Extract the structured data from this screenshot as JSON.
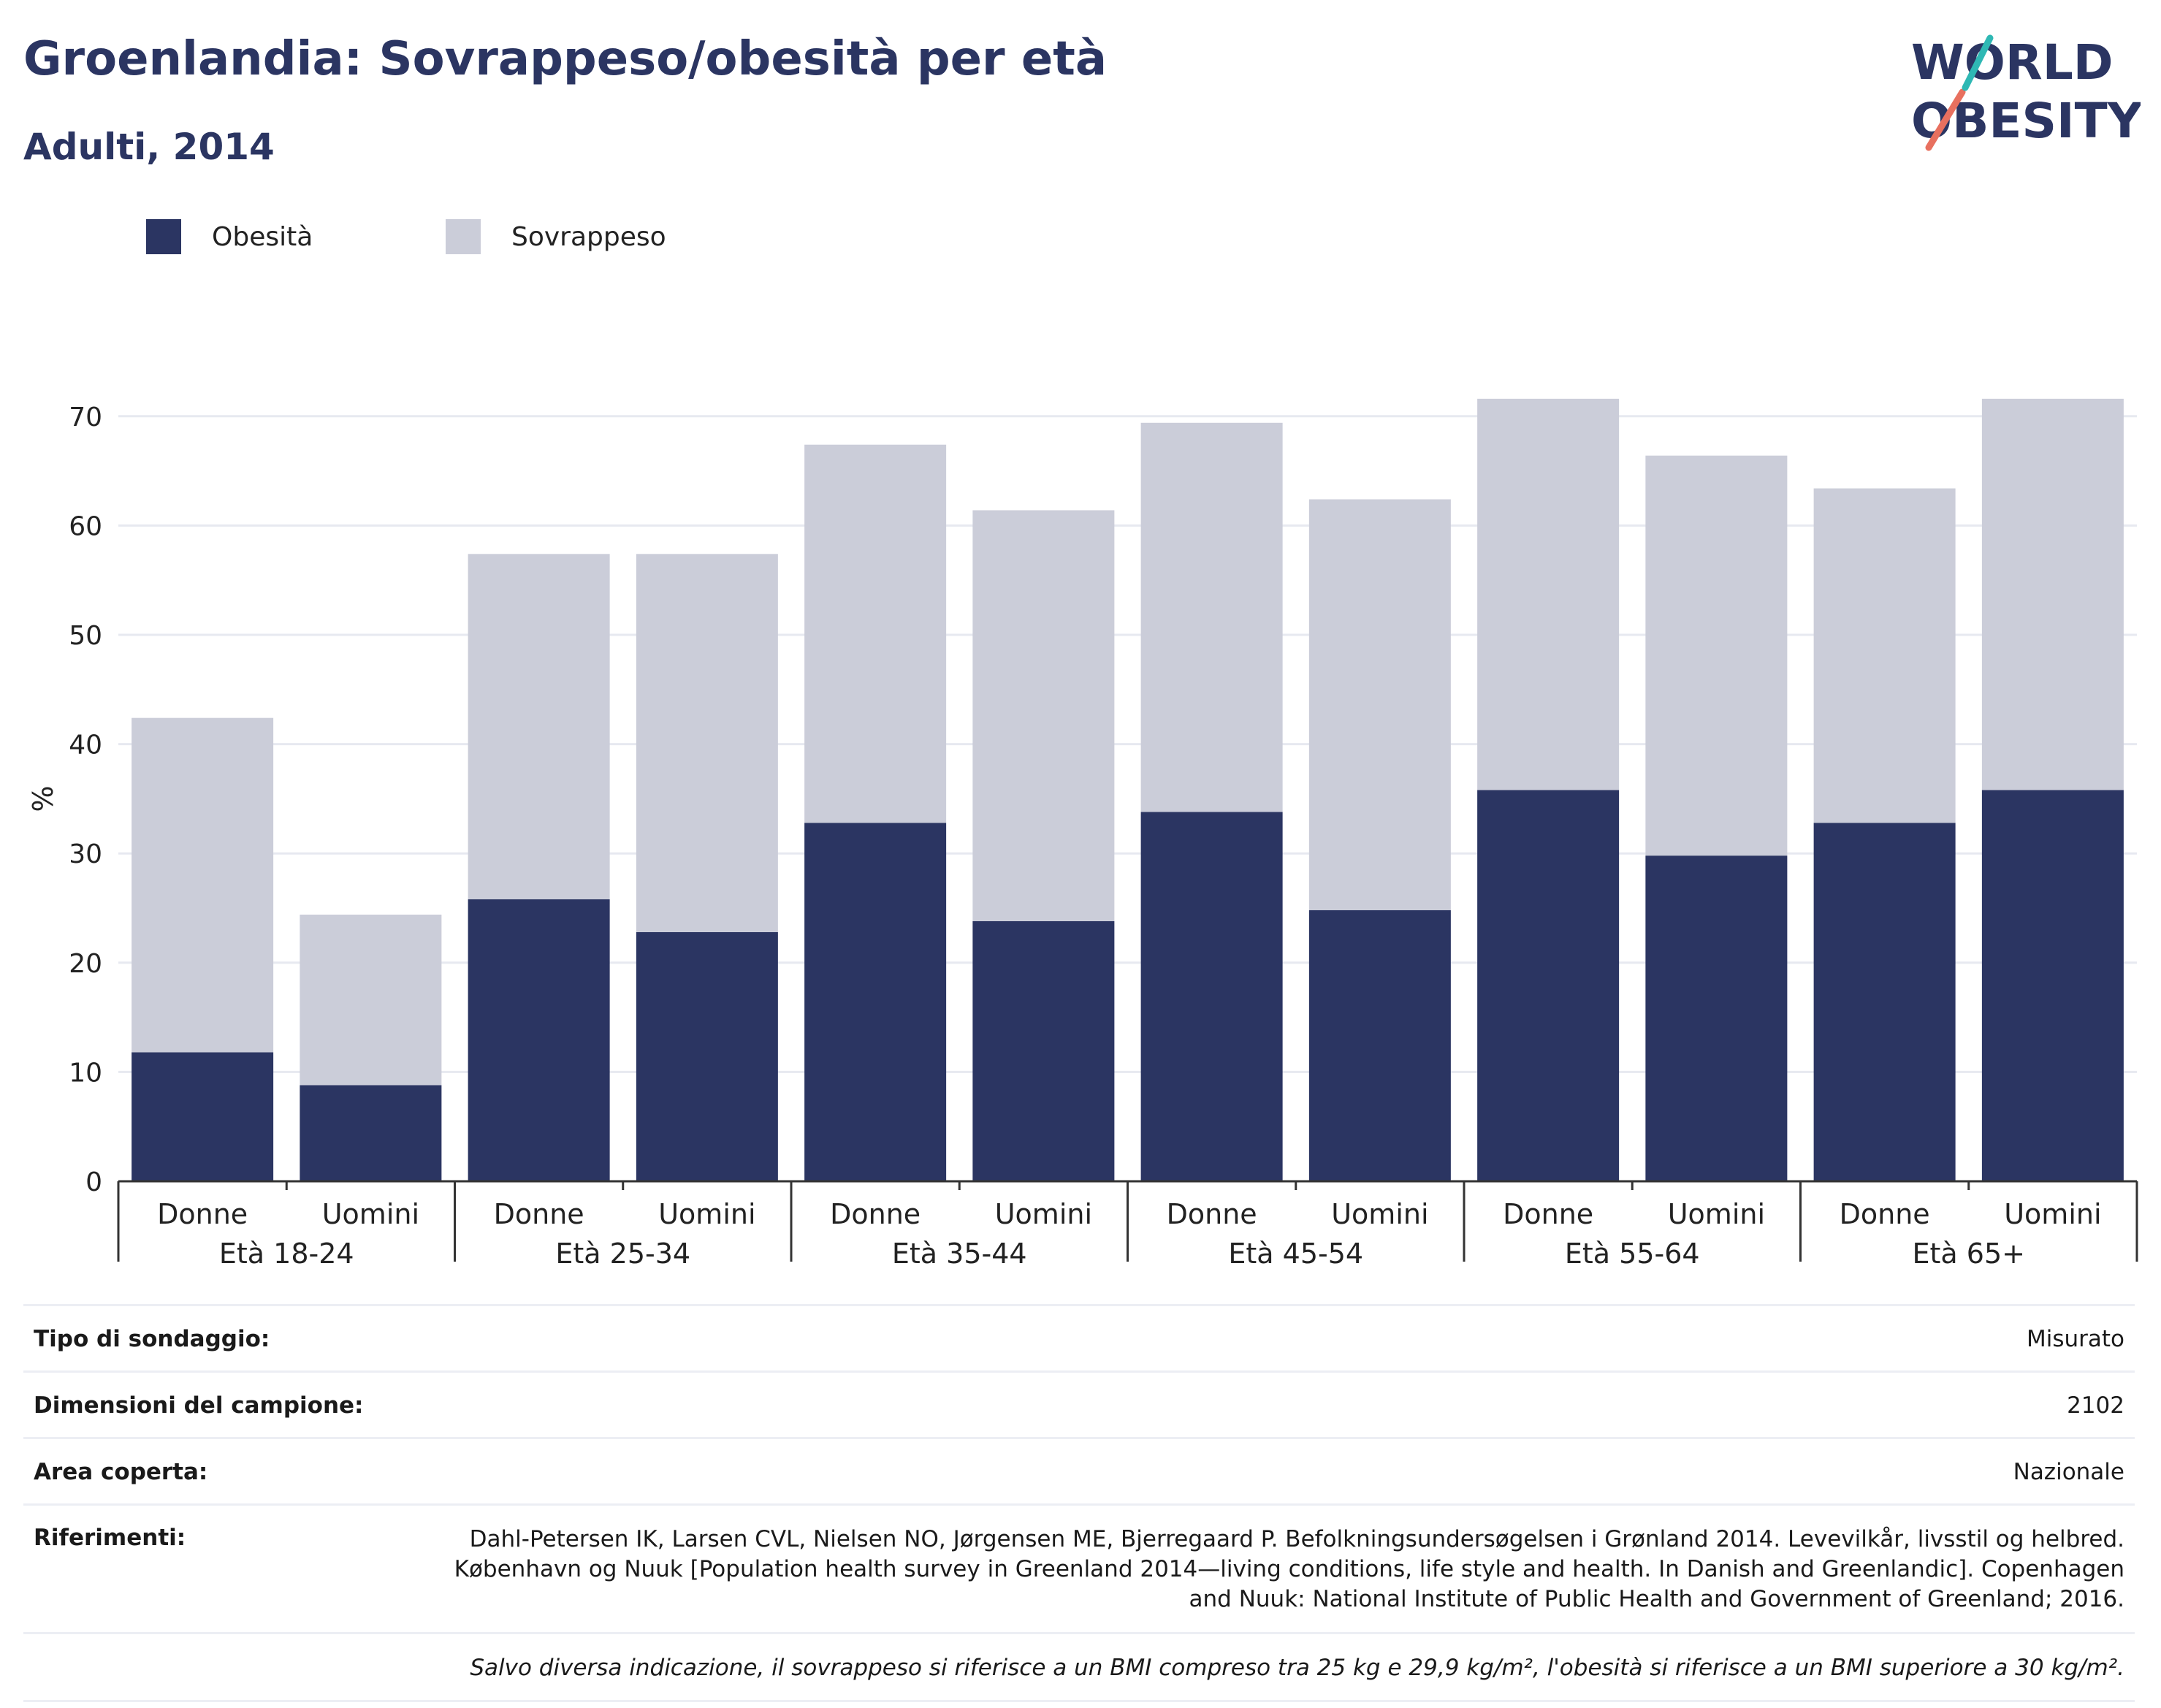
{
  "header": {
    "title": "Groenlandia: Sovrappeso/obesità per età",
    "subtitle": "Adulti, 2014"
  },
  "logo": {
    "line1": "WORLD",
    "line2": "OBESITY"
  },
  "colors": {
    "obesity": "#2b3562",
    "overweight": "#cbcdd9",
    "title": "#2b3562",
    "grid": "#e7e9f0",
    "axis": "#333333"
  },
  "chart_data": {
    "type": "bar",
    "stacked": true,
    "ylabel": "%",
    "xlabel": "",
    "ylim": [
      0,
      70
    ],
    "yticks": [
      0,
      10,
      20,
      30,
      40,
      50,
      60,
      70
    ],
    "grid": true,
    "legend_position": "top-left",
    "groups": [
      "Età 18-24",
      "Età 25-34",
      "Età 35-44",
      "Età 45-54",
      "Età 55-64",
      "Età 65+"
    ],
    "categories": [
      "Donne",
      "Uomini",
      "Donne",
      "Uomini",
      "Donne",
      "Uomini",
      "Donne",
      "Uomini",
      "Donne",
      "Uomini",
      "Donne",
      "Uomini"
    ],
    "series": [
      {
        "name": "Obesità",
        "values": [
          11.8,
          8.8,
          25.8,
          22.8,
          32.8,
          23.8,
          33.8,
          24.8,
          35.8,
          29.8,
          32.8,
          35.8
        ]
      },
      {
        "name": "Sovrappeso",
        "values": [
          30.6,
          15.6,
          31.6,
          34.6,
          34.6,
          37.6,
          35.6,
          37.6,
          35.8,
          36.6,
          30.6,
          35.8
        ]
      }
    ]
  },
  "info": [
    {
      "label": "Tipo di sondaggio:",
      "value": "Misurato"
    },
    {
      "label": "Dimensioni del campione:",
      "value": "2102"
    },
    {
      "label": "Area coperta:",
      "value": "Nazionale"
    },
    {
      "label": "Riferimenti:",
      "value": "Dahl-Petersen IK, Larsen CVL, Nielsen NO, Jørgensen ME, Bjerregaard P. Befolkningsundersøgelsen i Grønland 2014. Levevilkår, livsstil og helbred. København og Nuuk [Population health survey in Greenland 2014—living conditions, life style and health. In Danish and Greenlandic]. Copenhagen and Nuuk: National Institute of Public Health and Government of Greenland; 2016."
    }
  ],
  "note": "Salvo diversa indicazione, il sovrappeso si riferisce a un BMI compreso tra 25 kg e 29,9 kg/m², l'obesità si riferisce a un BMI superiore a 30 kg/m²."
}
